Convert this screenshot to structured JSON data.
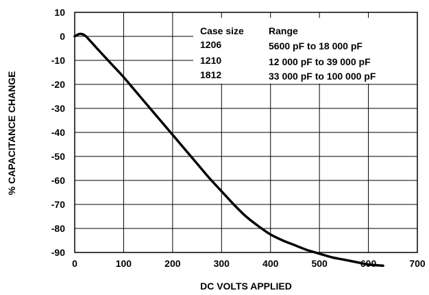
{
  "chart_data": {
    "type": "line",
    "title": "",
    "xlabel": "DC VOLTS APPLIED",
    "ylabel": "% CAPACITANCE CHANGE",
    "xlim": [
      0,
      700
    ],
    "ylim": [
      -90,
      10
    ],
    "x_ticks": [
      "0",
      "100",
      "200",
      "300",
      "400",
      "500",
      "600",
      "700"
    ],
    "y_ticks": [
      "10",
      "0",
      "-10",
      "-20",
      "-30",
      "-40",
      "-50",
      "-60",
      "-70",
      "-80",
      "-90"
    ],
    "grid": true,
    "series": [
      {
        "x": [
          0,
          10,
          20,
          30,
          50,
          75,
          100,
          125,
          150,
          175,
          200,
          225,
          250,
          275,
          300,
          325,
          350,
          375,
          400,
          425,
          450,
          475,
          500,
          525,
          550,
          575,
          600,
          630
        ],
        "y": [
          0,
          1,
          0.5,
          -1.5,
          -6,
          -11.5,
          -17,
          -23,
          -29,
          -35,
          -41,
          -47,
          -53,
          -59,
          -64.5,
          -70,
          -75,
          -79,
          -82.5,
          -85,
          -87,
          -89,
          -90.5,
          -92,
          -93,
          -94,
          -95,
          -95.5
        ]
      }
    ],
    "legend_table": {
      "headers": [
        "Case size",
        "Range"
      ],
      "rows": [
        [
          "1206",
          "5600 pF to 18 000 pF"
        ],
        [
          "1210",
          "12 000 pF to 39 000 pF"
        ],
        [
          "1812",
          "33 000 pF to 100 000 pF"
        ]
      ]
    }
  }
}
